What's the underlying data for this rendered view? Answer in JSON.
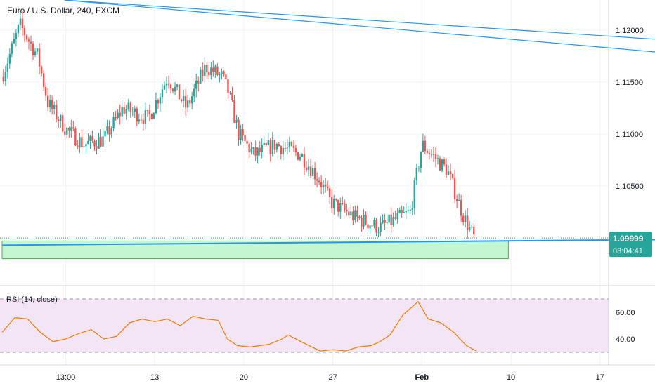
{
  "symbol_title": "Euro / U.S. Dollar, 240, FXCM",
  "price_axis": {
    "ticks": [
      {
        "value": 1.12,
        "label": "1.12000"
      },
      {
        "value": 1.115,
        "label": "1.11500"
      },
      {
        "value": 1.11,
        "label": "1.11000"
      },
      {
        "value": 1.105,
        "label": "1.10500"
      }
    ],
    "current_price": "1.09999",
    "countdown": "03:04:41"
  },
  "time_axis": [
    {
      "t": 5,
      "label": "13:00"
    },
    {
      "t": 12,
      "label": "13"
    },
    {
      "t": 19,
      "label": "20"
    },
    {
      "t": 26,
      "label": "27"
    },
    {
      "t": 33,
      "label": "Feb"
    },
    {
      "t": 40,
      "label": "10"
    },
    {
      "t": 47,
      "label": "17"
    }
  ],
  "rsi": {
    "label": "RSI (14, close)",
    "ticks": [
      {
        "value": 60,
        "label": "60.00"
      },
      {
        "value": 40,
        "label": "40.00"
      }
    ],
    "band": [
      30,
      70
    ]
  },
  "colors": {
    "up": "#26a69a",
    "down": "#ef5350",
    "trendline": "#2196f3",
    "zone_fill": "#b9f6ca",
    "zone_border": "#4caf50",
    "rsi_line": "#f57c00",
    "rsi_band": "#f3e5f5",
    "price_badge": "#26a69a"
  },
  "chart_data": {
    "type": "candlestick",
    "title": "Euro / U.S. Dollar, 240, FXCM",
    "x_axis": "time (days from start of window)",
    "price_range": [
      1.0977,
      1.1229
    ],
    "close_path": [
      [
        0,
        1.1155
      ],
      [
        1.4,
        1.1205
      ],
      [
        2.8,
        1.1175
      ],
      [
        3.6,
        1.113
      ],
      [
        5,
        1.1105
      ],
      [
        6.4,
        1.109
      ],
      [
        8,
        1.1095
      ],
      [
        9.5,
        1.1125
      ],
      [
        11.5,
        1.1115
      ],
      [
        13,
        1.1155
      ],
      [
        14.5,
        1.1125
      ],
      [
        16,
        1.1165
      ],
      [
        17.3,
        1.1155
      ],
      [
        17.8,
        1.114
      ],
      [
        18.6,
        1.11
      ],
      [
        19.8,
        1.108
      ],
      [
        21.5,
        1.109
      ],
      [
        23.5,
        1.108
      ],
      [
        25,
        1.1055
      ],
      [
        25.8,
        1.1035
      ],
      [
        27.7,
        1.102
      ],
      [
        29.7,
        1.101
      ],
      [
        30.5,
        1.1015
      ],
      [
        32.1,
        1.1025
      ],
      [
        33,
        1.109
      ],
      [
        33.8,
        1.108
      ],
      [
        35,
        1.1065
      ],
      [
        36.3,
        1.102
      ],
      [
        37.1,
        1.1
      ]
    ],
    "ohlc_samples": [
      {
        "t": 0.5,
        "o": 1.116,
        "h": 1.1185,
        "l": 1.1135,
        "c": 1.118
      },
      {
        "t": 1.4,
        "o": 1.118,
        "h": 1.121,
        "l": 1.117,
        "c": 1.12
      },
      {
        "t": 2.8,
        "o": 1.119,
        "h": 1.1195,
        "l": 1.115,
        "c": 1.116
      },
      {
        "t": 5.0,
        "o": 1.1115,
        "h": 1.112,
        "l": 1.1095,
        "c": 1.1102
      },
      {
        "t": 9.5,
        "o": 1.111,
        "h": 1.1135,
        "l": 1.11,
        "c": 1.113
      },
      {
        "t": 16.0,
        "o": 1.115,
        "h": 1.1175,
        "l": 1.1145,
        "c": 1.1168
      },
      {
        "t": 19.8,
        "o": 1.1095,
        "h": 1.11,
        "l": 1.1075,
        "c": 1.108
      },
      {
        "t": 27.7,
        "o": 1.103,
        "h": 1.1035,
        "l": 1.101,
        "c": 1.1015
      },
      {
        "t": 31.8,
        "o": 1.102,
        "h": 1.105,
        "l": 1.1015,
        "c": 1.1045
      },
      {
        "t": 33.0,
        "o": 1.105,
        "h": 1.1095,
        "l": 1.1045,
        "c": 1.109
      },
      {
        "t": 36.3,
        "o": 1.1035,
        "h": 1.104,
        "l": 1.101,
        "c": 1.1015
      },
      {
        "t": 37.1,
        "o": 1.1008,
        "h": 1.101,
        "l": 1.0997,
        "c": 1.0999
      }
    ],
    "trendlines": [
      {
        "name": "upper-1",
        "points": [
          [
            4.9,
            1.1229
          ],
          [
            57.9,
            1.1186
          ]
        ]
      },
      {
        "name": "upper-2",
        "points": [
          [
            4.9,
            1.1229
          ],
          [
            57.9,
            1.1172
          ]
        ]
      },
      {
        "name": "support",
        "points": [
          [
            0,
            1.0993
          ],
          [
            57.9,
            1.0999
          ]
        ]
      }
    ],
    "zone": {
      "t0": 0,
      "t1": 39.8,
      "low": 1.098,
      "high": 1.0997
    },
    "rsi_series": [
      [
        0,
        45
      ],
      [
        1,
        56
      ],
      [
        2,
        55
      ],
      [
        3,
        45
      ],
      [
        4,
        38
      ],
      [
        5,
        40
      ],
      [
        6,
        44
      ],
      [
        7,
        47
      ],
      [
        8,
        40
      ],
      [
        9,
        42
      ],
      [
        10,
        52
      ],
      [
        11,
        55
      ],
      [
        12,
        53
      ],
      [
        13,
        55
      ],
      [
        14,
        50
      ],
      [
        15,
        57
      ],
      [
        16,
        55
      ],
      [
        17,
        54
      ],
      [
        17.7,
        40
      ],
      [
        18.5,
        35
      ],
      [
        19.5,
        34
      ],
      [
        21,
        36
      ],
      [
        22,
        40
      ],
      [
        22.5,
        43
      ],
      [
        23.5,
        38
      ],
      [
        25,
        31
      ],
      [
        26,
        32
      ],
      [
        27,
        31
      ],
      [
        28,
        34
      ],
      [
        29,
        35
      ],
      [
        29.7,
        38
      ],
      [
        30.5,
        43
      ],
      [
        31.5,
        58
      ],
      [
        32.7,
        68
      ],
      [
        33.5,
        55
      ],
      [
        34.5,
        52
      ],
      [
        35.5,
        45
      ],
      [
        36.5,
        35
      ],
      [
        37.3,
        31
      ]
    ]
  }
}
